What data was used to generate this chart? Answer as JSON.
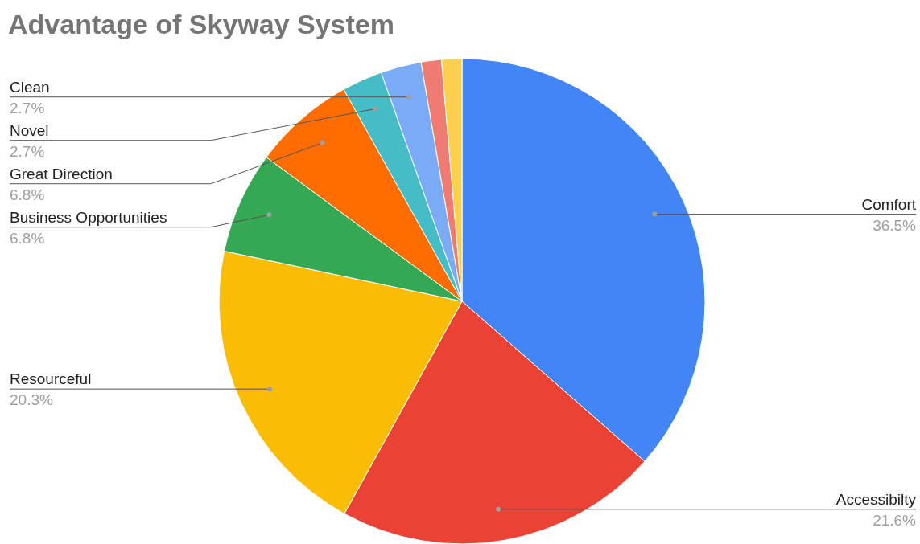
{
  "chart_data": {
    "type": "pie",
    "title": "Advantage of Skyway System",
    "categories": [
      "Comfort",
      "Accessibilty",
      "Resourceful",
      "Business Opportunities",
      "Great Direction",
      "Novel",
      "Clean",
      null,
      null
    ],
    "values": [
      36.5,
      21.6,
      20.3,
      6.8,
      6.8,
      2.7,
      2.7,
      1.35,
      1.35
    ],
    "value_labels": [
      "36.5%",
      "21.6%",
      "20.3%",
      "6.8%",
      "6.8%",
      "2.7%",
      "2.7%",
      null,
      null
    ],
    "colors": [
      "#4285f4",
      "#ea4335",
      "#fbbc04",
      "#34a853",
      "#ff6d01",
      "#46bdc6",
      "#7baaf7",
      "#f07b72",
      "#fcd04f"
    ]
  }
}
